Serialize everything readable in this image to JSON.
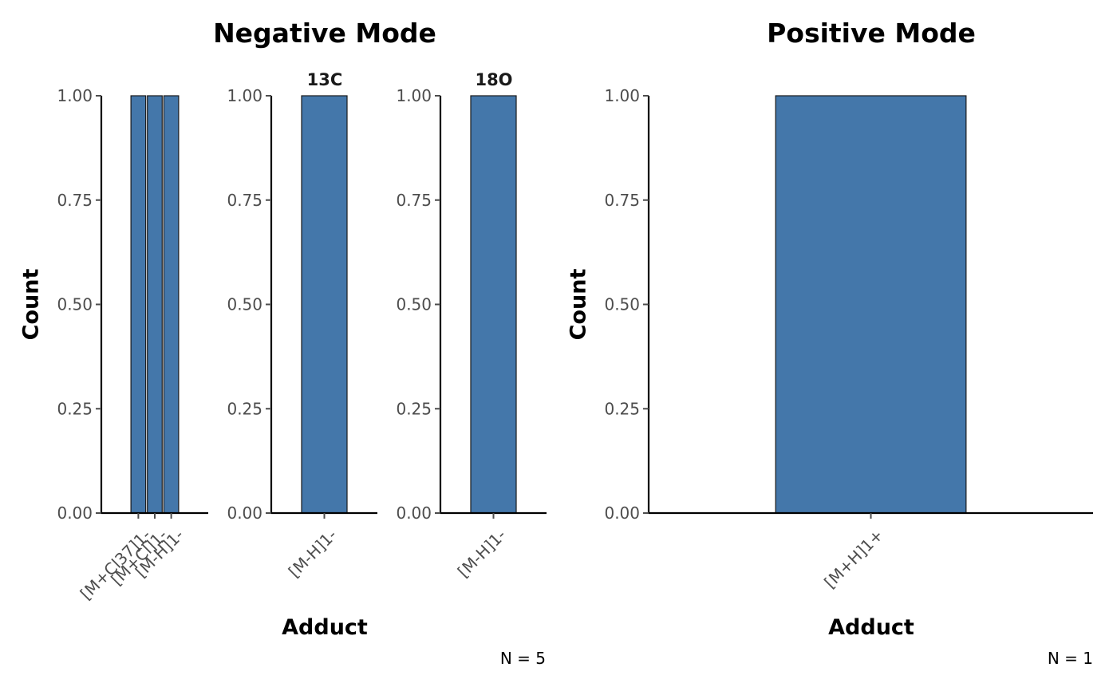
{
  "colors": {
    "bar_fill": "#4477aa",
    "bar_stroke": "#1a1a1a",
    "axis": "#000000",
    "tick_text": "#4d4d4d"
  },
  "chart_data": [
    {
      "type": "bar",
      "title": "Negative Mode",
      "xlabel": "Adduct",
      "ylabel": "Count",
      "ylim": [
        0,
        1
      ],
      "yticks": [
        "0.00",
        "0.25",
        "0.50",
        "0.75",
        "1.00"
      ],
      "caption": "N = 5",
      "grid": false,
      "facets": [
        {
          "strip": "",
          "categories": [
            "[M+Cl37]1-",
            "[M+Cl]1-",
            "[M-H]1-"
          ],
          "values": [
            1,
            1,
            1
          ]
        },
        {
          "strip": "13C",
          "categories": [
            "[M-H]1-"
          ],
          "values": [
            1
          ]
        },
        {
          "strip": "18O",
          "categories": [
            "[M-H]1-"
          ],
          "values": [
            1
          ]
        }
      ]
    },
    {
      "type": "bar",
      "title": "Positive Mode",
      "xlabel": "Adduct",
      "ylabel": "Count",
      "ylim": [
        0,
        1
      ],
      "yticks": [
        "0.00",
        "0.25",
        "0.50",
        "0.75",
        "1.00"
      ],
      "caption": "N = 1",
      "grid": false,
      "facets": [
        {
          "strip": "",
          "categories": [
            "[M+H]1+"
          ],
          "values": [
            1
          ]
        }
      ]
    }
  ]
}
